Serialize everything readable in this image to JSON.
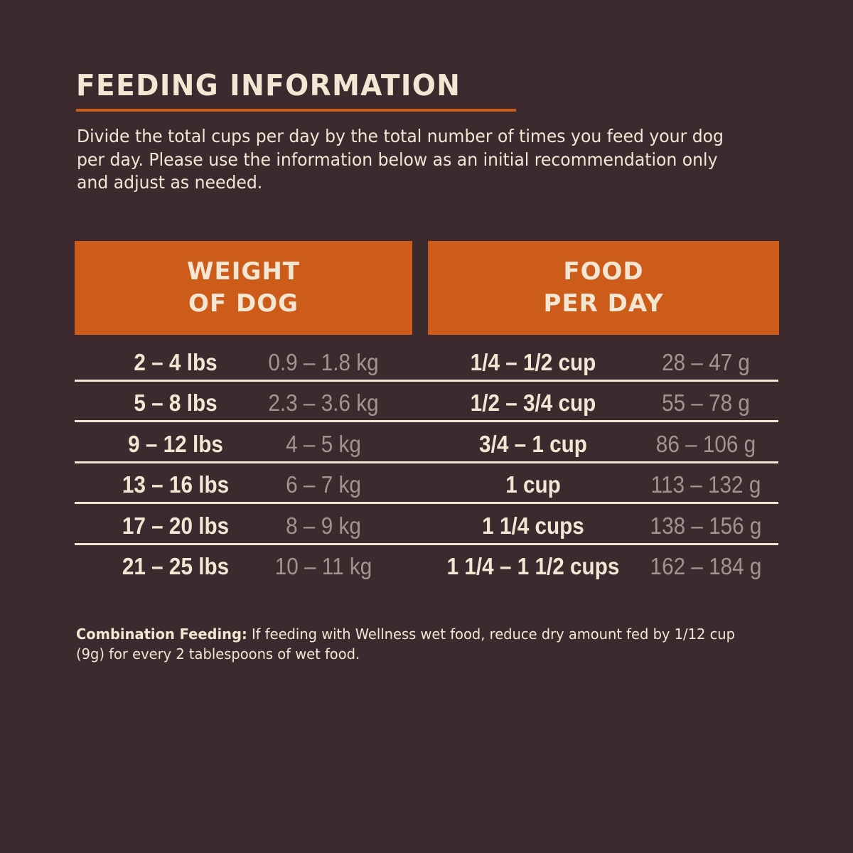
{
  "title": "FEEDING INFORMATION",
  "intro": "Divide the total cups per day by the total number of times you feed your dog per day. Please use the information below as an initial recommendation only and adjust as needed.",
  "table": {
    "headers": [
      "WEIGHT\nOF DOG",
      "FOOD\nPER DAY"
    ],
    "rows": [
      {
        "lbs": "2 – 4 lbs",
        "kg": "0.9 – 1.8 kg",
        "cups": "1/4 – 1/2 cup",
        "grams": "28 – 47 g"
      },
      {
        "lbs": "5 – 8 lbs",
        "kg": "2.3 – 3.6 kg",
        "cups": "1/2 – 3/4 cup",
        "grams": "55 – 78 g"
      },
      {
        "lbs": "9 – 12 lbs",
        "kg": "4 – 5 kg",
        "cups": "3/4 – 1 cup",
        "grams": "86 – 106 g"
      },
      {
        "lbs": "13 – 16 lbs",
        "kg": "6 – 7 kg",
        "cups": "1 cup",
        "grams": "113 – 132 g"
      },
      {
        "lbs": "17 – 20 lbs",
        "kg": "8 – 9 kg",
        "cups": "1 1/4 cups",
        "grams": "138 – 156 g"
      },
      {
        "lbs": "21 – 25 lbs",
        "kg": "10 – 11 kg",
        "cups": "1 1/4 – 1 1/2 cups",
        "grams": "162 – 184 g"
      }
    ]
  },
  "note": {
    "label": "Combination Feeding:",
    "text": " If feeding with Wellness wet food, reduce dry amount fed by 1/12 cup (9g) for every 2 tablespoons of wet food."
  },
  "colors": {
    "background": "#3d2a2e",
    "accent": "#cd5c1a",
    "text": "#f3e6d3",
    "muted": "#a09590"
  }
}
